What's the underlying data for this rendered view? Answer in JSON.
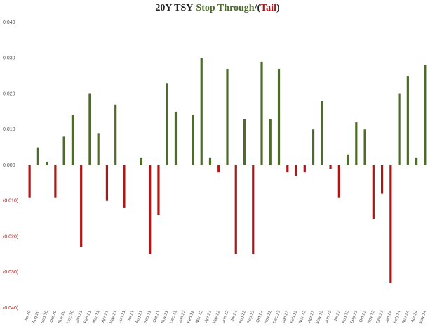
{
  "chart_data": {
    "type": "bar",
    "title_parts": [
      {
        "text": "20Y TSY",
        "color": "#222222"
      },
      {
        "text": "Stop Through",
        "color": "#4e6b2c"
      },
      {
        "text": "/(",
        "color": "#222222"
      },
      {
        "text": "Tail",
        "color": "#b01616"
      },
      {
        "text": ")",
        "color": "#222222"
      }
    ],
    "categories": [
      "Jul 20",
      "Aug 20",
      "Sep 20",
      "Oct 20",
      "Nov 20",
      "Dec 20",
      "Jan 21",
      "Feb 21",
      "Mar 21",
      "Apr 21",
      "May 21",
      "Jun 21",
      "Jul 21",
      "Aug 21",
      "Sep 21",
      "Oct 21",
      "Nov 21",
      "Dec 21",
      "Jan 22",
      "Feb 22",
      "Mar 22",
      "Apr 22",
      "May 22",
      "Jun 22",
      "Jul 22",
      "Aug 22",
      "Sep 22",
      "Oct 22",
      "Nov 22",
      "Dec 22",
      "Jan 23",
      "Feb 23",
      "Mar 23",
      "Apr 23",
      "May 23",
      "Jun 23",
      "Jul 23",
      "Aug 23",
      "Sep 23",
      "Oct 23",
      "Nov 23",
      "Dec 23",
      "Jan 24",
      "Feb 24",
      "Mar 24",
      "Apr 24",
      "May 24"
    ],
    "values": [
      -0.009,
      0.005,
      0.001,
      -0.009,
      0.008,
      0.014,
      -0.023,
      0.02,
      0.009,
      -0.01,
      0.017,
      -0.012,
      0,
      0.002,
      -0.025,
      -0.014,
      0.023,
      0.015,
      0,
      0.014,
      0.03,
      0.002,
      -0.002,
      0.027,
      -0.025,
      0.013,
      -0.025,
      0.029,
      0.013,
      0.027,
      -0.002,
      -0.003,
      -0.002,
      0.01,
      0.018,
      -0.001,
      -0.009,
      0.003,
      0.012,
      0.01,
      -0.015,
      -0.008,
      -0.033,
      0.02,
      0.025,
      0.002,
      0.028
    ],
    "positive_color": "#4e6b2c",
    "negative_color": "#b01616",
    "ylim": [
      -0.04,
      0.04
    ],
    "yticks": [
      {
        "value": -0.04,
        "label": "(0.040)"
      },
      {
        "value": -0.03,
        "label": "(0.030)"
      },
      {
        "value": -0.02,
        "label": "(0.020)"
      },
      {
        "value": -0.01,
        "label": "(0.010)"
      },
      {
        "value": 0,
        "label": "0.000"
      },
      {
        "value": 0.01,
        "label": "0.010"
      },
      {
        "value": 0.02,
        "label": "0.020"
      },
      {
        "value": 0.03,
        "label": "0.030"
      },
      {
        "value": 0.04,
        "label": "0.040"
      }
    ],
    "grid": false
  }
}
